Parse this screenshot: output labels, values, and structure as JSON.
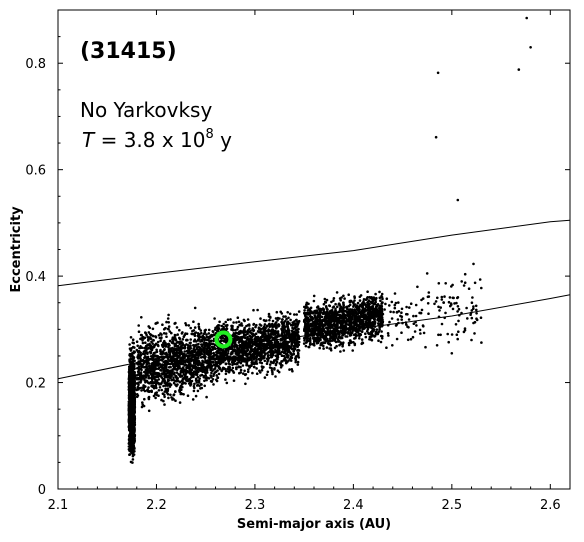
{
  "chart_data": {
    "type": "scatter",
    "xlabel": "Semi-major axis (AU)",
    "ylabel": "Eccentricity",
    "xlim": [
      2.1,
      2.62
    ],
    "ylim": [
      0,
      0.9
    ],
    "x_ticks": [
      "2.1",
      "2.2",
      "2.3",
      "2.4",
      "2.5",
      "2.6"
    ],
    "y_ticks": [
      "0",
      "0.2",
      "0.4",
      "0.6",
      "0.8"
    ],
    "grid": false,
    "annotations": {
      "id": "(31415)",
      "line1": "No Yarkovksy",
      "line2_var": "T",
      "line2_eq": " = 3.8 x 10",
      "line2_exp": "8",
      "line2_unit": " y"
    },
    "marker": {
      "name": "",
      "x": 2.268,
      "y": 0.281,
      "color": "#22ee22"
    },
    "point_color": "#000000",
    "clusters": [
      {
        "x_range": [
          2.172,
          2.178
        ],
        "y_center": 0.17,
        "y_spread": 0.12,
        "density": "high"
      },
      {
        "x_range": [
          2.18,
          2.26
        ],
        "y_center": 0.24,
        "y_spread": 0.09,
        "density": "high"
      },
      {
        "x_range": [
          2.26,
          2.345
        ],
        "y_center": 0.27,
        "y_spread": 0.07,
        "density": "high"
      },
      {
        "x_range": [
          2.35,
          2.43
        ],
        "y_center": 0.315,
        "y_spread": 0.06,
        "density": "high"
      },
      {
        "x_range": [
          2.43,
          2.53
        ],
        "y_center": 0.33,
        "y_spread": 0.08,
        "density": "low"
      }
    ],
    "outlier_points": [
      {
        "x": 2.576,
        "y": 0.885
      },
      {
        "x": 2.58,
        "y": 0.83
      },
      {
        "x": 2.568,
        "y": 0.788
      },
      {
        "x": 2.486,
        "y": 0.782
      },
      {
        "x": 2.484,
        "y": 0.661
      },
      {
        "x": 2.506,
        "y": 0.543
      },
      {
        "x": 2.522,
        "y": 0.423
      },
      {
        "x": 2.475,
        "y": 0.405
      },
      {
        "x": 2.51,
        "y": 0.39
      },
      {
        "x": 2.465,
        "y": 0.38
      },
      {
        "x": 2.498,
        "y": 0.36
      },
      {
        "x": 2.515,
        "y": 0.34
      },
      {
        "x": 2.525,
        "y": 0.32
      },
      {
        "x": 2.49,
        "y": 0.31
      },
      {
        "x": 2.455,
        "y": 0.305
      },
      {
        "x": 2.505,
        "y": 0.29
      },
      {
        "x": 2.52,
        "y": 0.28
      },
      {
        "x": 2.53,
        "y": 0.275
      },
      {
        "x": 2.485,
        "y": 0.27
      },
      {
        "x": 2.5,
        "y": 0.255
      }
    ],
    "series": [
      {
        "points": [
          [
            2.1,
            0.382
          ],
          [
            2.2,
            0.405
          ],
          [
            2.3,
            0.427
          ],
          [
            2.4,
            0.448
          ],
          [
            2.5,
            0.477
          ],
          [
            2.6,
            0.502
          ],
          [
            2.62,
            0.505
          ]
        ]
      },
      {
        "points": [
          [
            2.1,
            0.207
          ],
          [
            2.2,
            0.245
          ],
          [
            2.3,
            0.275
          ],
          [
            2.4,
            0.3
          ],
          [
            2.5,
            0.325
          ],
          [
            2.6,
            0.358
          ],
          [
            2.62,
            0.365
          ]
        ]
      }
    ]
  }
}
